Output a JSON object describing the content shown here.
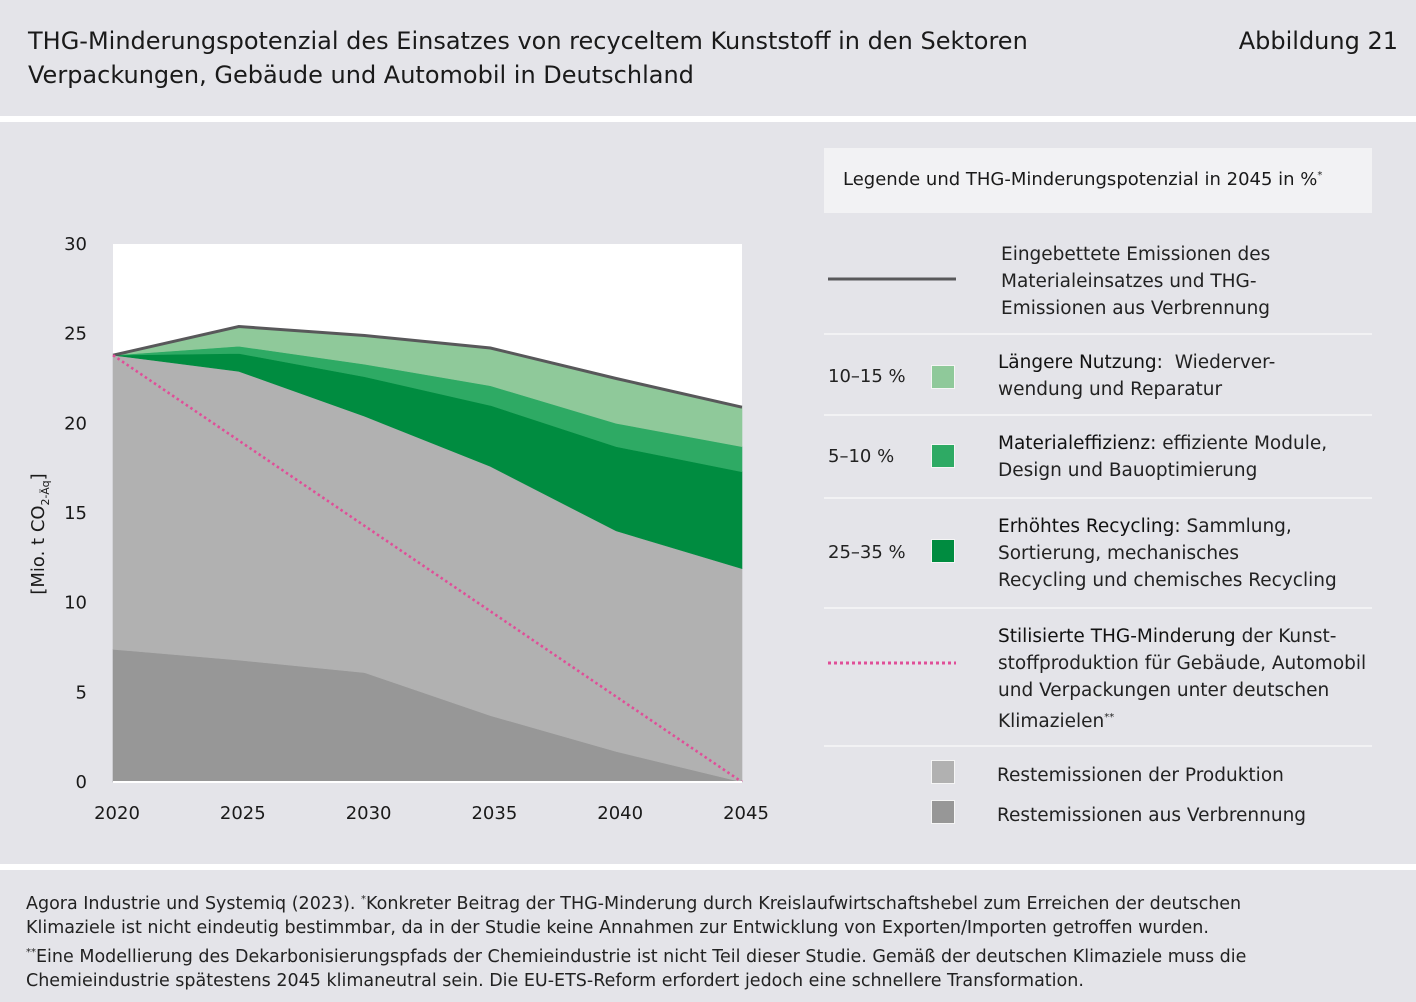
{
  "header": {
    "title_line1": "THG-Minderungspotenzial des Einsatzes von recyceltem Kunststoff in den Sektoren",
    "title_line2": "Verpackungen, Gebäude und Automobil in Deutschland",
    "figure_label": "Abbildung 21"
  },
  "colors": {
    "embedded_line": "#58585a",
    "laengere_nutzung": "#8fc99a",
    "materialeffizienz": "#2eaa64",
    "erhoehtes_recycling": "#008c40",
    "restemissionen_produktion": "#b1b1b1",
    "restemissionen_verbrennung": "#979797",
    "stylized_path": "#e04e98"
  },
  "legend": {
    "heading": "Legende und THG-Minderungspotenzial in 2045 in %",
    "heading_mark": "*",
    "embedded": {
      "line1": "Eingebettete Emissionen des",
      "line2": "Materialeinsatzes und THG-",
      "line3": "Emissionen aus Verbrennung"
    },
    "laengere_nutzung": {
      "percent": "10–15 %",
      "bold": "Längere Nutzung:",
      "rest1": "Wiederver-",
      "rest2": "wendung und Reparatur"
    },
    "materialeffizienz": {
      "percent": "5–10 %",
      "bold": "Materialeffizienz:",
      "rest1": "effiziente Module,",
      "rest2": "Design und Bauoptimierung"
    },
    "recycling": {
      "percent": "25–35 %",
      "bold": "Erhöhtes Recycling:",
      "rest1": "Sammlung,",
      "rest2": "Sortierung, mechanisches",
      "rest3": "Recycling und chemisches Recycling"
    },
    "stylized": {
      "bold": "Stilisierte THG-Minderung",
      "rest1": "der Kunst-",
      "rest2": "stoffproduktion für Gebäude, Automobil",
      "rest3": "und Verpackungen unter deutschen",
      "rest4": "Klimazielen",
      "mark": "**"
    },
    "produktion": "Restemissionen der Produktion",
    "verbrennung": "Restemissionen aus Verbrennung"
  },
  "chart_data": {
    "type": "area",
    "ylabel_prefix": "[Mio. t CO",
    "ylabel_sub": "2-Äq",
    "ylabel_suffix": "]",
    "ylim": [
      0,
      30
    ],
    "yticks": [
      "0",
      "5",
      "10",
      "15",
      "20",
      "25",
      "30"
    ],
    "categories": [
      "2020",
      "2025",
      "2030",
      "2035",
      "2040",
      "2045"
    ],
    "stacked_series": [
      {
        "key": "restemissionen_verbrennung",
        "values": [
          7.4,
          6.8,
          6.1,
          3.7,
          1.7,
          0
        ]
      },
      {
        "key": "restemissionen_produktion",
        "values": [
          16.4,
          16.1,
          14.3,
          13.9,
          12.3,
          11.9
        ]
      },
      {
        "key": "erhoehtes_recycling",
        "values": [
          0,
          1.0,
          2.2,
          3.4,
          4.7,
          5.4
        ]
      },
      {
        "key": "materialeffizienz",
        "values": [
          0,
          0.4,
          0.7,
          1.1,
          1.3,
          1.4
        ]
      },
      {
        "key": "laengere_nutzung",
        "values": [
          0,
          1.1,
          1.6,
          2.1,
          2.5,
          2.2
        ]
      }
    ],
    "embedded_emissions": [
      23.8,
      25.4,
      24.9,
      24.2,
      22.5,
      20.9
    ],
    "stylized_reduction": [
      23.8,
      0
    ]
  },
  "footer": {
    "line1": "Agora Industrie und Systemiq (2023). ",
    "mark1": "*",
    "line1b": "Konkreter Beitrag der THG-Minderung durch Kreislaufwirtschaftshebel zum Erreichen der deutschen",
    "line2": "Klimaziele ist nicht eindeutig bestimmbar, da in der Studie keine Annahmen zur Entwicklung von Exporten/Importen getroffen wurden.",
    "mark2": "**",
    "line3": "Eine Modellierung des Dekarbonisierungspfads der Chemieindustrie ist nicht Teil dieser Studie. Gemäß der deutschen Klimaziele muss die",
    "line4": "Chemieindustrie spätestens 2045 klimaneutral sein. Die EU-ETS-Reform erfordert jedoch eine schnellere Transformation."
  }
}
